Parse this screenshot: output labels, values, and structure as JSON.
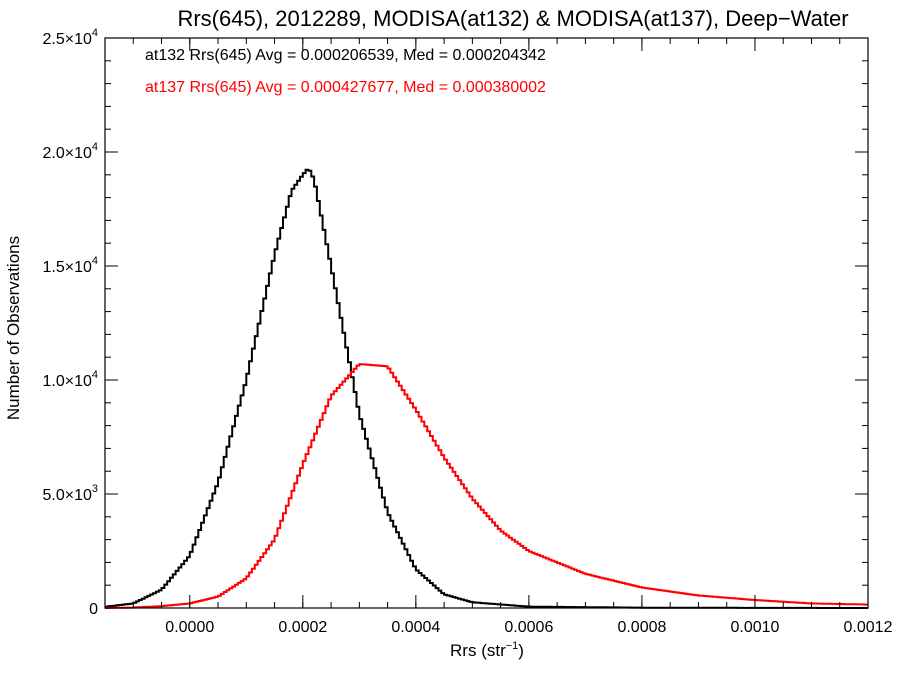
{
  "chart_data": {
    "type": "histogram-step",
    "title": "Rrs(645), 2012289, MODISA(at132) & MODISA(at137), Deep−Water",
    "xlabel": "Rrs (str",
    "xlabel_sup": "−1",
    "xlabel_end": ")",
    "ylabel": "Number of Observations",
    "xlim": [
      -0.00015,
      0.0012
    ],
    "ylim": [
      0,
      25000
    ],
    "grid": false,
    "x_ticks": [
      {
        "value": 0.0,
        "label": "0.0000"
      },
      {
        "value": 0.0002,
        "label": "0.0002"
      },
      {
        "value": 0.0004,
        "label": "0.0004"
      },
      {
        "value": 0.0006,
        "label": "0.0006"
      },
      {
        "value": 0.0008,
        "label": "0.0008"
      },
      {
        "value": 0.001,
        "label": "0.0010"
      },
      {
        "value": 0.0012,
        "label": "0.0012"
      }
    ],
    "y_ticks": [
      {
        "value": 0,
        "mant": "0",
        "exp": ""
      },
      {
        "value": 5000,
        "mant": "5.0×10",
        "exp": "3"
      },
      {
        "value": 10000,
        "mant": "1.0×10",
        "exp": "4"
      },
      {
        "value": 15000,
        "mant": "1.5×10",
        "exp": "4"
      },
      {
        "value": 20000,
        "mant": "2.0×10",
        "exp": "4"
      },
      {
        "value": 25000,
        "mant": "2.5×10",
        "exp": "4"
      }
    ],
    "annotations": [
      {
        "text": "at132 Rrs(645) Avg = 0.000206539, Med = 0.000204342",
        "color": "#000000"
      },
      {
        "text": "at137 Rrs(645) Avg = 0.000427677, Med = 0.000380002",
        "color": "#ff0000"
      }
    ],
    "series": [
      {
        "name": "at132",
        "color": "#000000",
        "x": [
          -0.00015,
          -0.0001,
          -5e-05,
          0.0,
          5e-05,
          0.0001,
          0.00015,
          0.00018,
          0.0002,
          0.00021,
          0.00022,
          0.00025,
          0.0003,
          0.00035,
          0.0004,
          0.00045,
          0.0005,
          0.0006,
          0.0008,
          0.001,
          0.0012
        ],
        "y": [
          50,
          200,
          800,
          2300,
          5500,
          10000,
          15500,
          18300,
          19000,
          19300,
          18800,
          15000,
          8500,
          4200,
          1700,
          600,
          250,
          60,
          15,
          5,
          0
        ]
      },
      {
        "name": "at137",
        "color": "#ff0000",
        "x": [
          -0.00015,
          -0.0001,
          -5e-05,
          0.0,
          5e-05,
          0.0001,
          0.00015,
          0.0002,
          0.00025,
          0.0003,
          0.00035,
          0.0004,
          0.00045,
          0.0005,
          0.00055,
          0.0006,
          0.0007,
          0.0008,
          0.0009,
          0.001,
          0.0011,
          0.0012
        ],
        "y": [
          0,
          20,
          80,
          200,
          500,
          1300,
          3000,
          6300,
          9300,
          10700,
          10600,
          8700,
          6600,
          4800,
          3400,
          2500,
          1500,
          900,
          550,
          350,
          200,
          150
        ]
      }
    ]
  }
}
